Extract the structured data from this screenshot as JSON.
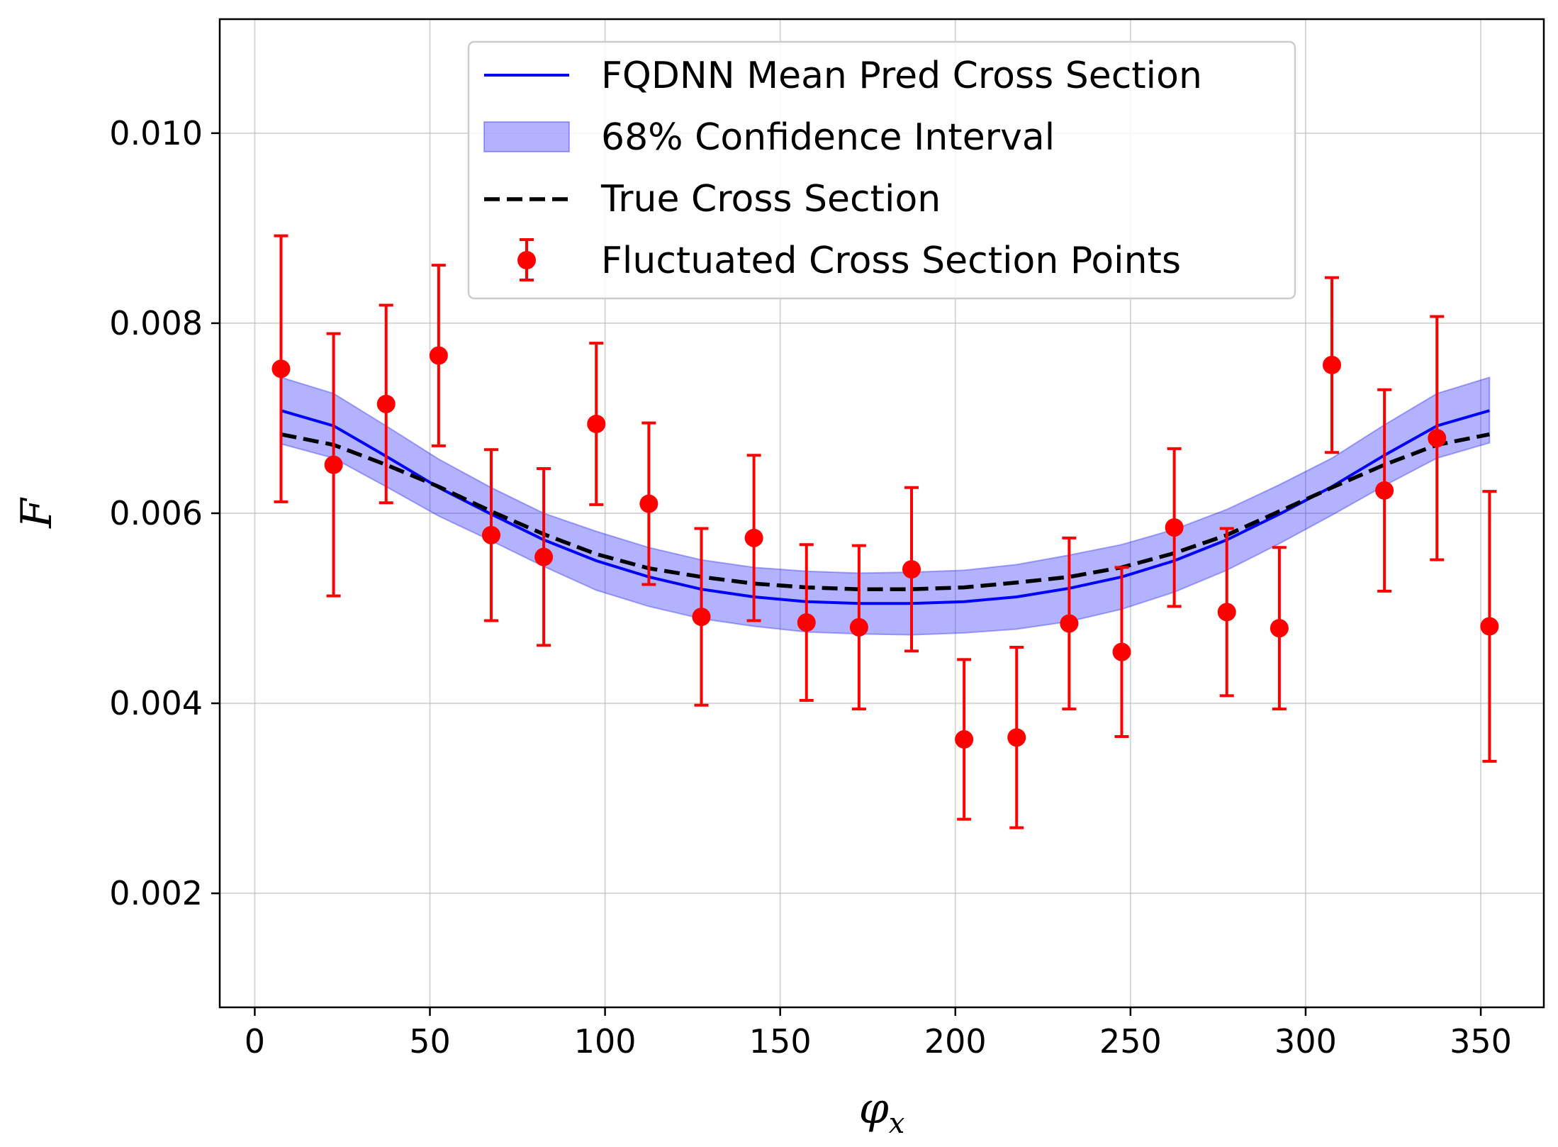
{
  "chart_data": {
    "type": "line",
    "xlabel": "φ",
    "xlabel_sub": "x",
    "ylabel": "F",
    "xlim": [
      -10,
      368
    ],
    "ylim": [
      0.0008,
      0.0112
    ],
    "xticks": [
      0,
      50,
      100,
      150,
      200,
      250,
      300,
      350
    ],
    "xtick_labels": [
      "0",
      "50",
      "100",
      "150",
      "200",
      "250",
      "300",
      "350"
    ],
    "yticks": [
      0.002,
      0.004,
      0.006,
      0.008,
      0.01
    ],
    "ytick_labels": [
      "0.002",
      "0.004",
      "0.006",
      "0.008",
      "0.010"
    ],
    "grid": true,
    "legend_position": "upper-center",
    "x": [
      7.5,
      22.5,
      37.5,
      52.5,
      67.5,
      82.5,
      97.5,
      112.5,
      127.5,
      142.5,
      157.5,
      172.5,
      187.5,
      202.5,
      217.5,
      232.5,
      247.5,
      262.5,
      277.5,
      292.5,
      307.5,
      322.5,
      337.5,
      352.5
    ],
    "series": [
      {
        "name": "FQDNN Mean Pred Cross Section",
        "kind": "line",
        "color": "#0000ff",
        "values": [
          0.00708,
          0.00692,
          0.0066,
          0.00627,
          0.00599,
          0.00572,
          0.0055,
          0.00533,
          0.0052,
          0.00512,
          0.00507,
          0.00505,
          0.00505,
          0.00507,
          0.00512,
          0.00521,
          0.00533,
          0.0055,
          0.00572,
          0.00599,
          0.00628,
          0.00661,
          0.00692,
          0.00708
        ]
      },
      {
        "name": "68% Confidence Interval",
        "kind": "band",
        "color": "#0000ff",
        "lower": [
          0.00673,
          0.00658,
          0.00628,
          0.00597,
          0.00571,
          0.00544,
          0.00519,
          0.00502,
          0.00489,
          0.00481,
          0.00475,
          0.00473,
          0.00472,
          0.00474,
          0.00478,
          0.00486,
          0.00499,
          0.00517,
          0.0054,
          0.00568,
          0.00598,
          0.00629,
          0.00658,
          0.00674
        ],
        "upper": [
          0.00743,
          0.00726,
          0.00692,
          0.00657,
          0.00627,
          0.006,
          0.00581,
          0.00564,
          0.00551,
          0.00543,
          0.00539,
          0.00537,
          0.00538,
          0.0054,
          0.00546,
          0.00556,
          0.00567,
          0.00583,
          0.00604,
          0.0063,
          0.00658,
          0.00693,
          0.00726,
          0.00743
        ]
      },
      {
        "name": "True Cross Section",
        "kind": "dashed",
        "color": "#000000",
        "values": [
          0.00683,
          0.00672,
          0.00651,
          0.00628,
          0.00602,
          0.00578,
          0.00557,
          0.00542,
          0.00533,
          0.00526,
          0.00522,
          0.0052,
          0.0052,
          0.00522,
          0.00527,
          0.00533,
          0.00543,
          0.00558,
          0.00577,
          0.00602,
          0.00627,
          0.00651,
          0.00672,
          0.00683
        ]
      },
      {
        "name": "Fluctuated Cross Section Points",
        "kind": "errorbar",
        "color": "#ff0000",
        "values": [
          0.00752,
          0.00651,
          0.00715,
          0.00766,
          0.00577,
          0.00554,
          0.00694,
          0.0061,
          0.00491,
          0.00574,
          0.00485,
          0.0048,
          0.00541,
          0.00362,
          0.00364,
          0.00484,
          0.00454,
          0.00585,
          0.00496,
          0.00479,
          0.00756,
          0.00624,
          0.00679,
          0.00481
        ],
        "errors": [
          0.0014,
          0.00138,
          0.00104,
          0.00095,
          0.0009,
          0.00093,
          0.00085,
          0.00085,
          0.00093,
          0.00087,
          0.00082,
          0.00086,
          0.00086,
          0.00084,
          0.00095,
          0.0009,
          0.00089,
          0.00083,
          0.00088,
          0.00085,
          0.00092,
          0.00106,
          0.00128,
          0.00142
        ]
      }
    ]
  }
}
